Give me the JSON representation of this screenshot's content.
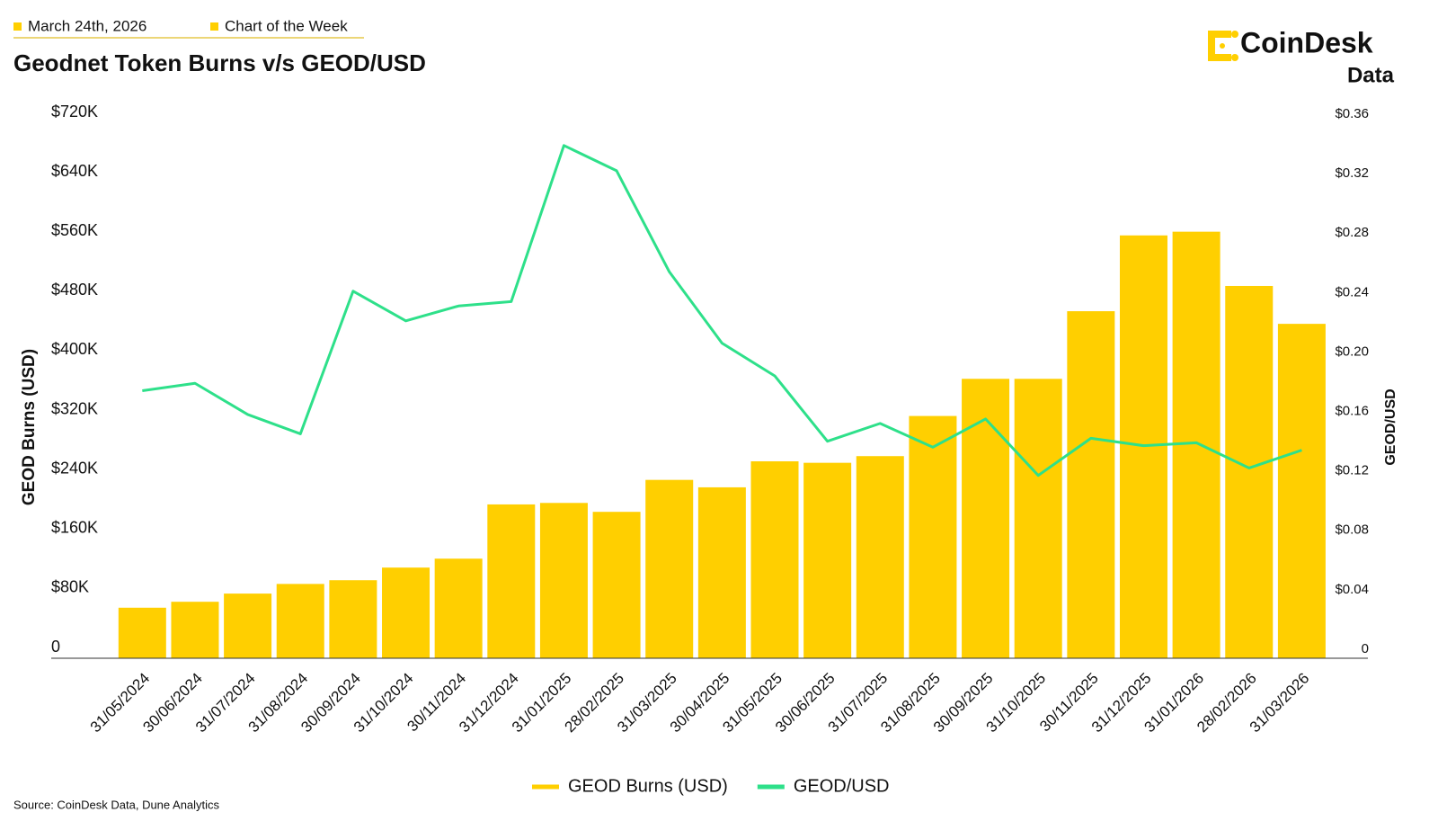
{
  "header": {
    "date": "March 24th, 2026",
    "label": "Chart of the Week"
  },
  "logo": {
    "name": "CoinDesk",
    "sub": "Data"
  },
  "source": "Source: CoinDesk Data, Dune Analytics",
  "chart_data": {
    "type": "bar-line",
    "title": "Geodnet Token Burns v/s GEOD/USD",
    "y_label": "GEOD Burns (USD)",
    "y2_label": "GEOD/USD",
    "categories": [
      "31/05/2024",
      "30/06/2024",
      "31/07/2024",
      "31/08/2024",
      "30/09/2024",
      "31/10/2024",
      "30/11/2024",
      "31/12/2024",
      "31/01/2025",
      "28/02/2025",
      "31/03/2025",
      "30/04/2025",
      "31/05/2025",
      "30/06/2025",
      "31/07/2025",
      "31/08/2025",
      "30/09/2025",
      "31/10/2025",
      "30/11/2025",
      "31/12/2025",
      "31/01/2026",
      "28/02/2026",
      "31/03/2026"
    ],
    "series": [
      {
        "name": "GEOD Burns (USD)",
        "type": "bar",
        "color": "#ffcf00",
        "values": [
          68000,
          76000,
          87000,
          100000,
          105000,
          122000,
          134000,
          207000,
          209000,
          197000,
          240000,
          230000,
          265000,
          263000,
          272000,
          326000,
          376000,
          376000,
          467000,
          569000,
          574000,
          501000,
          450000
        ]
      },
      {
        "name": "GEOD/USD",
        "type": "line",
        "axis": "y2",
        "color": "#2ee08a",
        "values": [
          0.18,
          0.185,
          0.164,
          0.151,
          0.247,
          0.227,
          0.237,
          0.24,
          0.345,
          0.328,
          0.26,
          0.212,
          0.19,
          0.146,
          0.158,
          0.142,
          0.161,
          0.123,
          0.148,
          0.143,
          0.145,
          0.128,
          0.14
        ]
      }
    ],
    "ylim": [
      0,
      720000
    ],
    "yticks": [
      0,
      {
        "value": 80000,
        "label": "$80K"
      },
      {
        "value": 160000,
        "label": "$160K"
      },
      {
        "value": 240000,
        "label": "$240K"
      },
      {
        "value": 320000,
        "label": "$320K"
      },
      {
        "value": 400000,
        "label": "$400K"
      },
      {
        "value": 480000,
        "label": "$480K"
      },
      {
        "value": 560000,
        "label": "$560K"
      },
      {
        "value": 640000,
        "label": "$640K"
      },
      {
        "value": 720000,
        "label": "$720K"
      }
    ],
    "y2lim": [
      0,
      0.36
    ],
    "y2ticks": [
      0,
      {
        "value": 0.04,
        "label": "$0.04"
      },
      {
        "value": 0.08,
        "label": "$0.08"
      },
      {
        "value": 0.12,
        "label": "$0.12"
      },
      {
        "value": 0.16,
        "label": "$0.16"
      },
      {
        "value": 0.2,
        "label": "$0.20"
      },
      {
        "value": 0.24,
        "label": "$0.24"
      },
      {
        "value": 0.28,
        "label": "$0.28"
      },
      {
        "value": 0.32,
        "label": "$0.32"
      },
      {
        "value": 0.36,
        "label": "$0.36"
      }
    ],
    "legend": "bottom"
  }
}
